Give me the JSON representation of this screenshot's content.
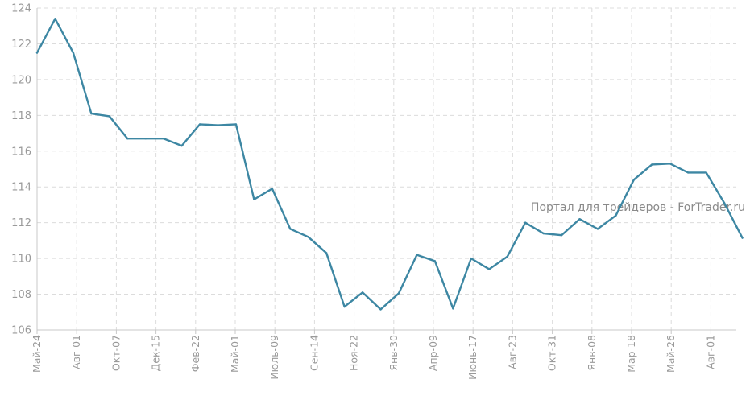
{
  "chart_data": {
    "type": "line",
    "title": "",
    "xlabel": "",
    "ylabel": "",
    "ylim": [
      106,
      124
    ],
    "yticks": [
      "106",
      "108",
      "110",
      "112",
      "114",
      "116",
      "118",
      "120",
      "122",
      "124"
    ],
    "xticks": [
      "Май-24",
      "Авг-01",
      "Окт-07",
      "Дек-15",
      "Фев-22",
      "Май-01",
      "Июль-09",
      "Сен-14",
      "Ноя-22",
      "Янв-30",
      "Апр-09",
      "Июнь-17",
      "Авг-23",
      "Окт-31",
      "Янв-08",
      "Мар-18",
      "Май-26",
      "Авг-01"
    ],
    "grid": true,
    "line_color": "#3d87a3",
    "values": [
      121.5,
      123.4,
      121.5,
      118.1,
      117.95,
      116.7,
      116.7,
      116.7,
      116.3,
      117.5,
      117.45,
      117.5,
      113.3,
      113.9,
      111.65,
      111.2,
      110.3,
      107.3,
      108.1,
      107.15,
      108.05,
      110.2,
      109.85,
      107.2,
      110.0,
      109.4,
      110.1,
      112.0,
      111.4,
      111.3,
      112.2,
      111.65,
      112.4,
      114.4,
      115.25,
      115.3,
      114.8,
      114.8,
      113.1,
      111.15
    ]
  },
  "watermark": "Портал для трейдеров - ForTrader.ru"
}
